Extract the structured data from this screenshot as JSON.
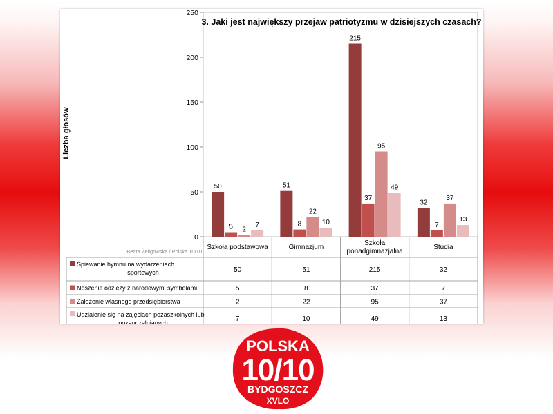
{
  "chart_data": {
    "type": "bar",
    "title": "3. Jaki jest największy przejaw patriotyzmu w dzisiejszych czasach?",
    "ylabel": "Liczba głosów",
    "xlabel": "",
    "ylim": [
      0,
      250
    ],
    "yticks": [
      0,
      50,
      100,
      150,
      200,
      250
    ],
    "grid": false,
    "legend": "table-below",
    "categories": [
      "Szkoła podstawowa",
      "Gimnazjum",
      "Szkoła ponadgimnazjalna",
      "Studia"
    ],
    "series": [
      {
        "name": "Śpiewanie hymnu na wydarzeniach sportowych",
        "color": "#943b3b",
        "values": [
          50,
          51,
          215,
          32
        ]
      },
      {
        "name": "Noszenie odzieży z narodowymi symbolami",
        "color": "#c0504d",
        "values": [
          5,
          8,
          37,
          7
        ]
      },
      {
        "name": "Założenie własnego przedsiębiorstwa",
        "color": "#d68b8b",
        "values": [
          2,
          22,
          95,
          37
        ]
      },
      {
        "name": "Udzialenie się na zajęciach pozaszkolnych lub pozauczelnianych",
        "color": "#e8bcbc",
        "values": [
          7,
          10,
          49,
          13
        ]
      }
    ],
    "credit": "Beata Żeligowska / Polska 10/10"
  },
  "logo": {
    "line1": "POLSKA",
    "line2": "10/10",
    "line3": "BYDGOSZCZ",
    "line4": "XVLO",
    "color": "#e3101b"
  }
}
